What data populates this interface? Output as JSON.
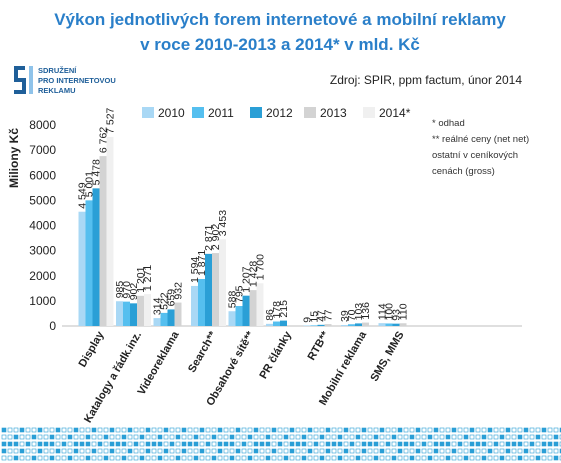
{
  "title_line1": "Výkon jednotlivých forem internetové a mobilní reklamy",
  "title_line2": "v roce 2010-2013 a 2014* v mld. Kč",
  "source": "Zdroj: SPIR, ppm factum, únor 2014",
  "logo": {
    "line1": "SDRUŽENÍ",
    "line2": "PRO INTERNETOVOU",
    "line3": "REKLAMU",
    "icon": "spir-logo-icon",
    "color": "#1f5f99"
  },
  "notes": [
    "* odhad",
    "** reálné ceny (net net)",
    "ostatní v ceníkových",
    "cenách (gross)"
  ],
  "colors": {
    "title": "#2a7fc9",
    "series": [
      "#a9d8f5",
      "#55bfef",
      "#2a9fd6",
      "#d3d3d3",
      "#f0f0f0"
    ],
    "decor_blue": "#2a9fd6"
  },
  "chart_data": {
    "type": "bar",
    "title": "Výkon jednotlivých forem internetové a mobilní reklamy v roce 2010-2013 a 2014* v mld. Kč",
    "ylabel": "Miliony Kč",
    "xlabel": "",
    "ylim": [
      0,
      8000
    ],
    "yticks": [
      0,
      1000,
      2000,
      3000,
      4000,
      5000,
      6000,
      7000,
      8000
    ],
    "grid": false,
    "legend_position": "top",
    "categories": [
      "Display",
      "Katalogy a řádk.inz.",
      "Videoreklama",
      "Search**",
      "Obsahové sítě**",
      "PR články",
      "RTB**",
      "Mobilní reklama",
      "SMS, MMS"
    ],
    "series": [
      {
        "name": "2010",
        "values": [
          4549,
          985,
          314,
          1594,
          588,
          86,
          9,
          39,
          114
        ],
        "labels": [
          "4 549",
          "985",
          "314",
          "1 594",
          "588",
          "86",
          "9",
          "39",
          "114"
        ]
      },
      {
        "name": "2011",
        "values": [
          5001,
          970,
          522,
          1871,
          795,
          178,
          15,
          70,
          100
        ],
        "labels": [
          "5 001",
          "970",
          "522",
          "1 871",
          "795",
          "178",
          "15",
          "70",
          "100"
        ]
      },
      {
        "name": "2012",
        "values": [
          5478,
          902,
          659,
          2871,
          1207,
          215,
          47,
          103,
          93
        ],
        "labels": [
          "5 478",
          "902",
          "659",
          "2 871",
          "1 207",
          "215",
          "47",
          "103",
          "93"
        ]
      },
      {
        "name": "2013",
        "values": [
          6762,
          1201,
          932,
          2902,
          1428,
          null,
          77,
          136,
          110
        ],
        "labels": [
          "6 762",
          "1 201",
          "932",
          "2 902",
          "1 428",
          "",
          "77",
          "136",
          "110"
        ]
      },
      {
        "name": "2014*",
        "values": [
          7527,
          1271,
          null,
          3453,
          1700,
          null,
          null,
          null,
          null
        ],
        "labels": [
          "7 527",
          "1 271",
          "",
          "3 453",
          "1 700",
          "",
          "",
          "",
          ""
        ]
      }
    ]
  }
}
